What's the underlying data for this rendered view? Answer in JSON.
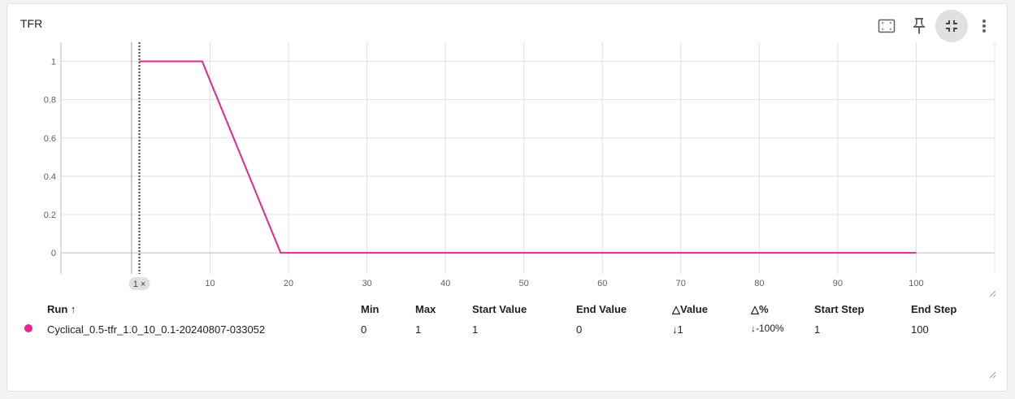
{
  "card": {
    "title": "TFR"
  },
  "toolbar": {
    "icons": [
      "fit-domain-icon",
      "pin-icon",
      "collapse-icon",
      "more-vert-icon"
    ]
  },
  "chart_data": {
    "type": "line",
    "title": "",
    "xlabel": "",
    "ylabel": "",
    "xlim": [
      -9,
      110
    ],
    "ylim": [
      -0.11,
      1.1
    ],
    "x_ticks": [
      10,
      20,
      30,
      40,
      50,
      60,
      70,
      80,
      90,
      100
    ],
    "y_ticks": [
      0,
      0.2,
      0.4,
      0.6,
      0.8,
      1
    ],
    "y_tick_labels": [
      "0",
      "0.2",
      "0.4",
      "0.6",
      "0.8",
      "1"
    ],
    "grid": true,
    "step_marker": {
      "step": 1,
      "label": "1 ×"
    },
    "series": [
      {
        "color": "#e52592",
        "x": [
          1,
          9,
          19,
          100
        ],
        "y": [
          1,
          1,
          0,
          0
        ]
      }
    ]
  },
  "table": {
    "headers": {
      "run": "Run",
      "sort_icon": "↑",
      "min": "Min",
      "max": "Max",
      "start_value": "Start Value",
      "end_value": "End Value",
      "delta_value": "△Value",
      "delta_pct": "△%",
      "start_step": "Start Step",
      "end_step": "End Step"
    },
    "rows": [
      {
        "color": "#e52592",
        "run": "Cyclical_0.5-tfr_1.0_10_0.1-20240807-033052",
        "min": "0",
        "max": "1",
        "start_value": "1",
        "end_value": "0",
        "delta_value": "↓1",
        "delta_pct": "↓-100%",
        "start_step": "1",
        "end_step": "100"
      }
    ]
  }
}
